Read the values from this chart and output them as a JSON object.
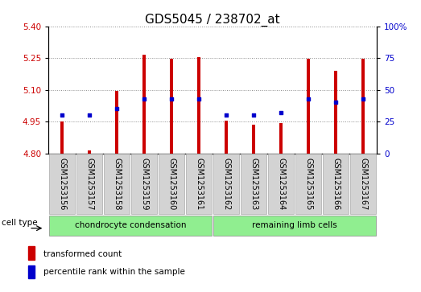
{
  "title": "GDS5045 / 238702_at",
  "samples": [
    "GSM1253156",
    "GSM1253157",
    "GSM1253158",
    "GSM1253159",
    "GSM1253160",
    "GSM1253161",
    "GSM1253162",
    "GSM1253163",
    "GSM1253164",
    "GSM1253165",
    "GSM1253166",
    "GSM1253167"
  ],
  "bar_values": [
    4.952,
    4.815,
    5.095,
    5.265,
    5.245,
    5.255,
    4.955,
    4.935,
    4.942,
    5.245,
    5.19,
    5.245
  ],
  "bar_base": 4.8,
  "blue_dot_pct": [
    30,
    30,
    35,
    43,
    43,
    43,
    30,
    30,
    32,
    43,
    40,
    43
  ],
  "ylim_left": [
    4.8,
    5.4
  ],
  "ylim_right": [
    0,
    100
  ],
  "yticks_left": [
    4.8,
    4.95,
    5.1,
    5.25,
    5.4
  ],
  "yticks_right": [
    0,
    25,
    50,
    75,
    100
  ],
  "bar_color": "#cc0000",
  "dot_color": "#0000cc",
  "group1_label": "chondrocyte condensation",
  "group2_label": "remaining limb cells",
  "group1_count": 6,
  "group2_count": 6,
  "cell_type_label": "cell type",
  "legend_bar_label": "transformed count",
  "legend_dot_label": "percentile rank within the sample",
  "group_bg_color": "#90ee90",
  "tick_bg_color": "#d3d3d3",
  "grid_color": "#888888",
  "title_fontsize": 11,
  "tick_fontsize": 7.5,
  "label_fontsize": 7,
  "group_fontsize": 7.5,
  "bar_width": 0.12
}
